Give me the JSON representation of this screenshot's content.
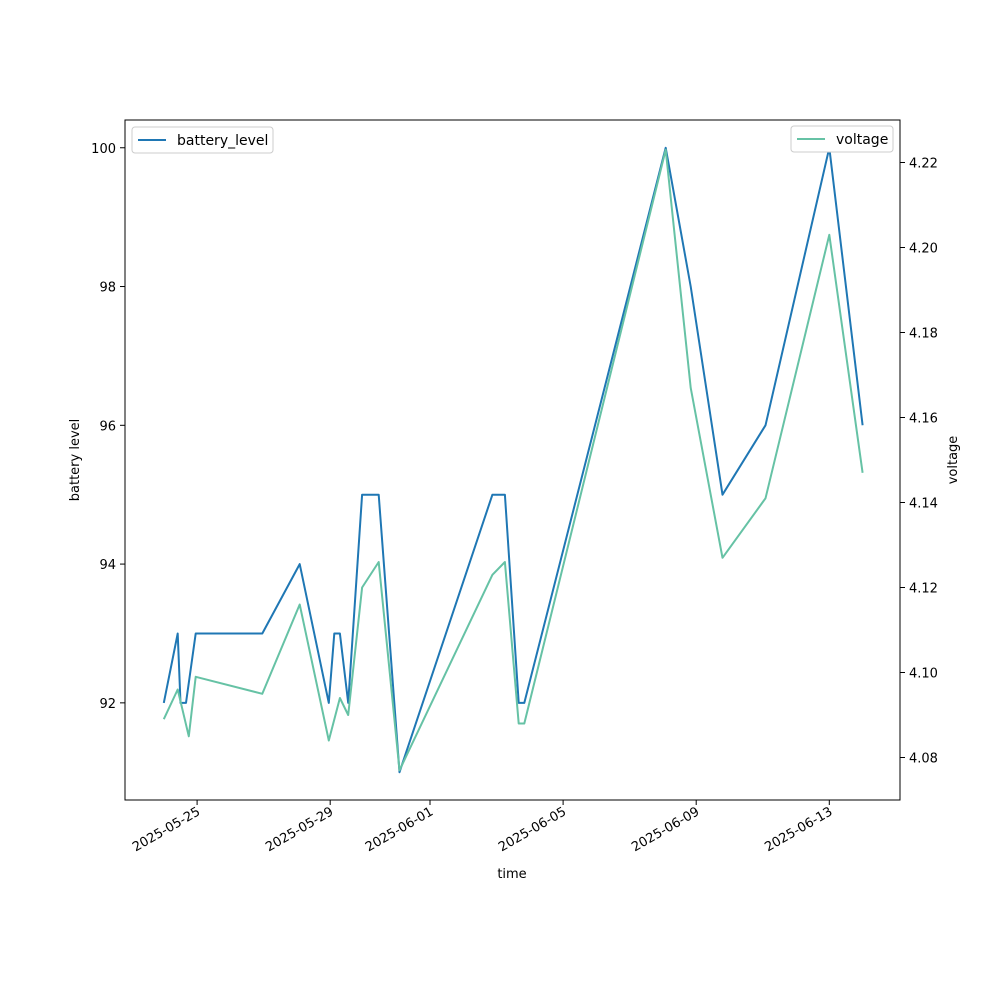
{
  "chart_data": {
    "type": "line",
    "xlabel": "time",
    "ylabel_left": "battery level",
    "ylabel_right": "voltage",
    "x_ticks": [
      "2025-05-25",
      "2025-05-29",
      "2025-06-01",
      "2025-06-05",
      "2025-06-09",
      "2025-06-13"
    ],
    "y_left_ticks": [
      92,
      94,
      96,
      98,
      100
    ],
    "y_right_ticks": [
      4.08,
      4.1,
      4.12,
      4.14,
      4.16,
      4.18,
      4.2,
      4.22
    ],
    "y_left_lim": [
      90.6,
      100.4
    ],
    "y_right_lim": [
      4.07,
      4.23
    ],
    "x_lim": [
      "2025-05-22T20:00",
      "2025-06-15T03:00"
    ],
    "grid": false,
    "series": [
      {
        "name": "battery_level",
        "axis": "left",
        "color": "#1f77b4",
        "legend_position": "top-left",
        "points": [
          [
            "2025-05-24T00:00",
            92
          ],
          [
            "2025-05-24T10:00",
            93
          ],
          [
            "2025-05-24T12:00",
            92
          ],
          [
            "2025-05-24T16:00",
            92
          ],
          [
            "2025-05-24T23:00",
            93
          ],
          [
            "2025-05-26T23:00",
            93
          ],
          [
            "2025-05-28T02:00",
            94
          ],
          [
            "2025-05-28T23:00",
            92
          ],
          [
            "2025-05-29T03:00",
            93
          ],
          [
            "2025-05-29T07:00",
            93
          ],
          [
            "2025-05-29T13:00",
            92
          ],
          [
            "2025-05-29T23:00",
            95
          ],
          [
            "2025-05-30T11:00",
            95
          ],
          [
            "2025-05-31T02:00",
            91
          ],
          [
            "2025-06-02T21:00",
            95
          ],
          [
            "2025-06-03T06:00",
            95
          ],
          [
            "2025-06-03T16:00",
            92
          ],
          [
            "2025-06-03T20:00",
            92
          ],
          [
            "2025-06-08T02:00",
            100
          ],
          [
            "2025-06-08T20:00",
            98
          ],
          [
            "2025-06-09T19:00",
            95
          ],
          [
            "2025-06-11T02:00",
            96
          ],
          [
            "2025-06-13T00:00",
            100
          ],
          [
            "2025-06-14T00:00",
            96
          ]
        ]
      },
      {
        "name": "voltage",
        "axis": "right",
        "color": "#66c2a5",
        "legend_position": "top-right",
        "points": [
          [
            "2025-05-24T00:00",
            4.089
          ],
          [
            "2025-05-24T10:00",
            4.096
          ],
          [
            "2025-05-24T18:00",
            4.085
          ],
          [
            "2025-05-24T23:00",
            4.099
          ],
          [
            "2025-05-26T23:00",
            4.095
          ],
          [
            "2025-05-28T02:00",
            4.116
          ],
          [
            "2025-05-28T23:00",
            4.084
          ],
          [
            "2025-05-29T07:00",
            4.094
          ],
          [
            "2025-05-29T13:00",
            4.09
          ],
          [
            "2025-05-29T23:00",
            4.12
          ],
          [
            "2025-05-30T11:00",
            4.126
          ],
          [
            "2025-05-31T02:00",
            4.077
          ],
          [
            "2025-06-02T21:00",
            4.123
          ],
          [
            "2025-06-03T06:00",
            4.126
          ],
          [
            "2025-06-03T16:00",
            4.088
          ],
          [
            "2025-06-03T20:00",
            4.088
          ],
          [
            "2025-06-08T02:00",
            4.223
          ],
          [
            "2025-06-08T20:00",
            4.167
          ],
          [
            "2025-06-09T19:00",
            4.127
          ],
          [
            "2025-06-11T02:00",
            4.141
          ],
          [
            "2025-06-13T00:00",
            4.203
          ],
          [
            "2025-06-14T00:00",
            4.147
          ]
        ]
      }
    ]
  }
}
